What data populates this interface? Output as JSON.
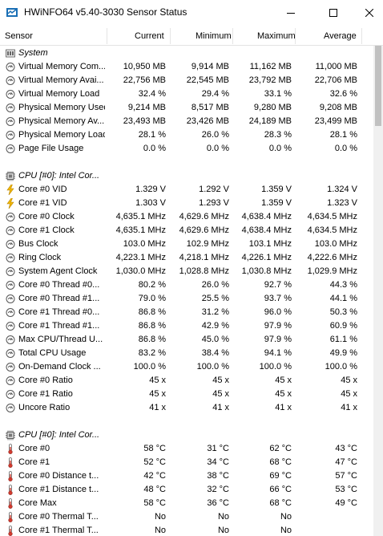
{
  "window": {
    "title": "HWiNFO64 v5.40-3030 Sensor Status",
    "minimize_icon": "minimize-icon",
    "maximize_icon": "maximize-icon",
    "close_icon": "close-icon"
  },
  "columns": {
    "sensor": "Sensor",
    "current": "Current",
    "minimum": "Minimum",
    "maximum": "Maximum",
    "average": "Average"
  },
  "rows": [
    {
      "type": "group",
      "icon": "memory-group-icon",
      "name": "System"
    },
    {
      "type": "sensor",
      "icon": "gauge-icon",
      "name": "Virtual Memory Com...",
      "cur": "10,950 MB",
      "min": "9,914 MB",
      "max": "11,162 MB",
      "avg": "11,000 MB"
    },
    {
      "type": "sensor",
      "icon": "gauge-icon",
      "name": "Virtual Memory Avai...",
      "cur": "22,756 MB",
      "min": "22,545 MB",
      "max": "23,792 MB",
      "avg": "22,706 MB"
    },
    {
      "type": "sensor",
      "icon": "gauge-icon",
      "name": "Virtual Memory Load",
      "cur": "32.4 %",
      "min": "29.4 %",
      "max": "33.1 %",
      "avg": "32.6 %"
    },
    {
      "type": "sensor",
      "icon": "gauge-icon",
      "name": "Physical Memory Used",
      "cur": "9,214 MB",
      "min": "8,517 MB",
      "max": "9,280 MB",
      "avg": "9,208 MB"
    },
    {
      "type": "sensor",
      "icon": "gauge-icon",
      "name": "Physical Memory Av...",
      "cur": "23,493 MB",
      "min": "23,426 MB",
      "max": "24,189 MB",
      "avg": "23,499 MB"
    },
    {
      "type": "sensor",
      "icon": "gauge-icon",
      "name": "Physical Memory Load",
      "cur": "28.1 %",
      "min": "26.0 %",
      "max": "28.3 %",
      "avg": "28.1 %"
    },
    {
      "type": "sensor",
      "icon": "gauge-icon",
      "name": "Page File Usage",
      "cur": "0.0 %",
      "min": "0.0 %",
      "max": "0.0 %",
      "avg": "0.0 %"
    },
    {
      "type": "blank"
    },
    {
      "type": "group",
      "icon": "cpu-chip-icon",
      "name": "CPU [#0]: Intel Cor..."
    },
    {
      "type": "sensor",
      "icon": "lightning-icon",
      "name": "Core #0 VID",
      "cur": "1.329 V",
      "min": "1.292 V",
      "max": "1.359 V",
      "avg": "1.324 V"
    },
    {
      "type": "sensor",
      "icon": "lightning-icon",
      "name": "Core #1 VID",
      "cur": "1.303 V",
      "min": "1.293 V",
      "max": "1.359 V",
      "avg": "1.323 V"
    },
    {
      "type": "sensor",
      "icon": "gauge-icon",
      "name": "Core #0 Clock",
      "cur": "4,635.1 MHz",
      "min": "4,629.6 MHz",
      "max": "4,638.4 MHz",
      "avg": "4,634.5 MHz"
    },
    {
      "type": "sensor",
      "icon": "gauge-icon",
      "name": "Core #1 Clock",
      "cur": "4,635.1 MHz",
      "min": "4,629.6 MHz",
      "max": "4,638.4 MHz",
      "avg": "4,634.5 MHz"
    },
    {
      "type": "sensor",
      "icon": "gauge-icon",
      "name": "Bus Clock",
      "cur": "103.0 MHz",
      "min": "102.9 MHz",
      "max": "103.1 MHz",
      "avg": "103.0 MHz"
    },
    {
      "type": "sensor",
      "icon": "gauge-icon",
      "name": "Ring Clock",
      "cur": "4,223.1 MHz",
      "min": "4,218.1 MHz",
      "max": "4,226.1 MHz",
      "avg": "4,222.6 MHz"
    },
    {
      "type": "sensor",
      "icon": "gauge-icon",
      "name": "System Agent Clock",
      "cur": "1,030.0 MHz",
      "min": "1,028.8 MHz",
      "max": "1,030.8 MHz",
      "avg": "1,029.9 MHz"
    },
    {
      "type": "sensor",
      "icon": "gauge-icon",
      "name": "Core #0 Thread #0...",
      "cur": "80.2 %",
      "min": "26.0 %",
      "max": "92.7 %",
      "avg": "44.3 %"
    },
    {
      "type": "sensor",
      "icon": "gauge-icon",
      "name": "Core #0 Thread #1...",
      "cur": "79.0 %",
      "min": "25.5 %",
      "max": "93.7 %",
      "avg": "44.1 %"
    },
    {
      "type": "sensor",
      "icon": "gauge-icon",
      "name": "Core #1 Thread #0...",
      "cur": "86.8 %",
      "min": "31.2 %",
      "max": "96.0 %",
      "avg": "50.3 %"
    },
    {
      "type": "sensor",
      "icon": "gauge-icon",
      "name": "Core #1 Thread #1...",
      "cur": "86.8 %",
      "min": "42.9 %",
      "max": "97.9 %",
      "avg": "60.9 %"
    },
    {
      "type": "sensor",
      "icon": "gauge-icon",
      "name": "Max CPU/Thread U...",
      "cur": "86.8 %",
      "min": "45.0 %",
      "max": "97.9 %",
      "avg": "61.1 %"
    },
    {
      "type": "sensor",
      "icon": "gauge-icon",
      "name": "Total CPU Usage",
      "cur": "83.2 %",
      "min": "38.4 %",
      "max": "94.1 %",
      "avg": "49.9 %"
    },
    {
      "type": "sensor",
      "icon": "gauge-icon",
      "name": "On-Demand Clock ...",
      "cur": "100.0 %",
      "min": "100.0 %",
      "max": "100.0 %",
      "avg": "100.0 %"
    },
    {
      "type": "sensor",
      "icon": "gauge-icon",
      "name": "Core #0 Ratio",
      "cur": "45 x",
      "min": "45 x",
      "max": "45 x",
      "avg": "45 x"
    },
    {
      "type": "sensor",
      "icon": "gauge-icon",
      "name": "Core #1 Ratio",
      "cur": "45 x",
      "min": "45 x",
      "max": "45 x",
      "avg": "45 x"
    },
    {
      "type": "sensor",
      "icon": "gauge-icon",
      "name": "Uncore Ratio",
      "cur": "41 x",
      "min": "41 x",
      "max": "41 x",
      "avg": "41 x"
    },
    {
      "type": "blank"
    },
    {
      "type": "group",
      "icon": "cpu-chip-icon",
      "name": "CPU [#0]: Intel Cor..."
    },
    {
      "type": "sensor",
      "icon": "thermometer-icon",
      "name": "Core #0",
      "cur": "58 °C",
      "min": "31 °C",
      "max": "62 °C",
      "avg": "43 °C"
    },
    {
      "type": "sensor",
      "icon": "thermometer-icon",
      "name": "Core #1",
      "cur": "52 °C",
      "min": "34 °C",
      "max": "68 °C",
      "avg": "47 °C"
    },
    {
      "type": "sensor",
      "icon": "thermometer-icon",
      "name": "Core #0 Distance t...",
      "cur": "42 °C",
      "min": "38 °C",
      "max": "69 °C",
      "avg": "57 °C"
    },
    {
      "type": "sensor",
      "icon": "thermometer-icon",
      "name": "Core #1 Distance t...",
      "cur": "48 °C",
      "min": "32 °C",
      "max": "66 °C",
      "avg": "53 °C"
    },
    {
      "type": "sensor",
      "icon": "thermometer-icon",
      "name": "Core Max",
      "cur": "58 °C",
      "min": "36 °C",
      "max": "68 °C",
      "avg": "49 °C"
    },
    {
      "type": "sensor",
      "icon": "thermometer-icon",
      "name": "Core #0 Thermal T...",
      "cur": "No",
      "min": "No",
      "max": "No",
      "avg": ""
    },
    {
      "type": "sensor",
      "icon": "thermometer-icon",
      "name": "Core #1 Thermal T...",
      "cur": "No",
      "min": "No",
      "max": "No",
      "avg": ""
    }
  ]
}
